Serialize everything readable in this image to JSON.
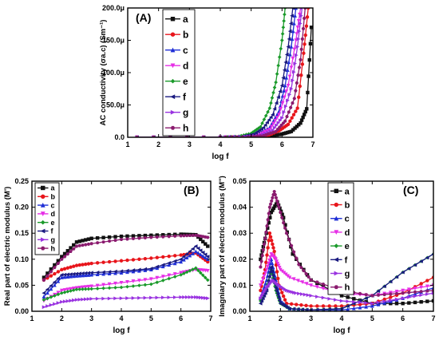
{
  "chart_data": [
    {
      "panel": "(A)",
      "type": "line",
      "ylabel": "AC conductivity (σa.c) (Sm⁻¹)",
      "xlabel": "log f",
      "xlim": [
        1,
        7
      ],
      "ylim": [
        0,
        0.0002
      ],
      "x_ticks": [
        "1",
        "2",
        "3",
        "4",
        "5",
        "6",
        "7"
      ],
      "y_ticks": [
        "0.0",
        "50.0μ",
        "100.0μ",
        "150.0μ",
        "200.0μ"
      ],
      "legend_position": "top-left",
      "series": [
        {
          "name": "a",
          "color": "#111111",
          "marker": "square",
          "x": [
            1.3,
            4.0,
            5.0,
            5.6,
            6.0,
            6.3,
            6.6,
            6.8,
            6.95
          ],
          "y": [
            0,
            0,
            0,
            1.5e-06,
            5e-06,
            9e-06,
            2.2e-05,
            4.4e-05,
            0.00017
          ]
        },
        {
          "name": "b",
          "color": "#e8151b",
          "marker": "circle",
          "x": [
            1.3,
            4.0,
            5.0,
            5.5,
            5.9,
            6.2,
            6.5,
            6.7,
            6.85
          ],
          "y": [
            0,
            0,
            5e-07,
            2e-06,
            1e-05,
            2e-05,
            4.5e-05,
            0.00013,
            0.0002
          ]
        },
        {
          "name": "c",
          "color": "#1f2fd6",
          "marker": "triangle-up",
          "x": [
            1.3,
            4.0,
            4.8,
            5.2,
            5.6,
            5.9,
            6.1,
            6.3,
            6.45
          ],
          "y": [
            0,
            0,
            1e-06,
            4e-06,
            1.5e-05,
            4e-05,
            8e-05,
            0.00014,
            0.0002
          ]
        },
        {
          "name": "d",
          "color": "#e62ee6",
          "marker": "triangle-down",
          "x": [
            1.3,
            4.0,
            4.8,
            5.2,
            5.6,
            5.9,
            6.2,
            6.45,
            6.6
          ],
          "y": [
            0,
            0,
            1e-06,
            3e-06,
            1.2e-05,
            3.5e-05,
            8e-05,
            0.00015,
            0.0002
          ]
        },
        {
          "name": "e",
          "color": "#1a9a2a",
          "marker": "diamond",
          "x": [
            1.3,
            4.0,
            4.6,
            5.0,
            5.3,
            5.6,
            5.8,
            6.0,
            6.1
          ],
          "y": [
            0,
            0,
            1.5e-06,
            6e-06,
            1.6e-05,
            4.5e-05,
            8.5e-05,
            0.00015,
            0.0002
          ]
        },
        {
          "name": "f",
          "color": "#1a1a80",
          "marker": "triangle-left",
          "x": [
            1.3,
            4.0,
            4.7,
            5.1,
            5.4,
            5.7,
            6.0,
            6.2,
            6.35
          ],
          "y": [
            0,
            0,
            1e-06,
            5e-06,
            1.5e-05,
            3.5e-05,
            8e-05,
            0.00014,
            0.0002
          ]
        },
        {
          "name": "g",
          "color": "#9932e0",
          "marker": "triangle-right",
          "x": [
            1.3,
            4.0,
            4.8,
            5.3,
            5.7,
            6.0,
            6.3,
            6.5,
            6.65
          ],
          "y": [
            0,
            0,
            1e-06,
            3e-06,
            1.1e-05,
            3e-05,
            7.5e-05,
            0.00014,
            0.0002
          ]
        },
        {
          "name": "h",
          "color": "#8a1a6e",
          "marker": "hexagon",
          "x": [
            1.3,
            4.0,
            4.9,
            5.4,
            5.8,
            6.1,
            6.4,
            6.6,
            6.75
          ],
          "y": [
            0,
            0,
            5e-07,
            2.5e-06,
            9e-06,
            2.5e-05,
            6e-05,
            0.00012,
            0.0002
          ]
        }
      ]
    },
    {
      "panel": "(B)",
      "type": "line",
      "ylabel": "Real part of electric modulus (M')",
      "xlabel": "log f",
      "xlim": [
        1,
        7
      ],
      "ylim": [
        0,
        0.25
      ],
      "x_ticks": [
        "1",
        "2",
        "3",
        "4",
        "5",
        "6",
        "7"
      ],
      "y_ticks": [
        "0.00",
        "0.05",
        "0.10",
        "0.15",
        "0.20",
        "0.25"
      ],
      "legend_position": "top-left",
      "series": [
        {
          "name": "a",
          "color": "#111111",
          "marker": "square",
          "x": [
            1.4,
            2.0,
            2.5,
            3.0,
            4.0,
            5.0,
            6.0,
            6.5,
            6.9
          ],
          "y": [
            0.065,
            0.105,
            0.133,
            0.14,
            0.144,
            0.146,
            0.148,
            0.147,
            0.125
          ]
        },
        {
          "name": "b",
          "color": "#e8151b",
          "marker": "circle",
          "x": [
            1.4,
            2.0,
            2.5,
            3.0,
            4.0,
            5.0,
            6.0,
            6.5,
            6.9
          ],
          "y": [
            0.06,
            0.08,
            0.088,
            0.092,
            0.097,
            0.102,
            0.108,
            0.112,
            0.095
          ]
        },
        {
          "name": "c",
          "color": "#1f2fd6",
          "marker": "triangle-up",
          "x": [
            1.4,
            2.0,
            2.5,
            3.0,
            4.0,
            5.0,
            6.0,
            6.5,
            6.9
          ],
          "y": [
            0.028,
            0.065,
            0.068,
            0.07,
            0.074,
            0.08,
            0.095,
            0.115,
            0.1
          ]
        },
        {
          "name": "d",
          "color": "#e62ee6",
          "marker": "triangle-down",
          "x": [
            1.4,
            2.0,
            2.5,
            3.0,
            4.0,
            5.0,
            6.0,
            6.5,
            6.9
          ],
          "y": [
            0.02,
            0.04,
            0.045,
            0.048,
            0.055,
            0.062,
            0.074,
            0.08,
            0.078
          ]
        },
        {
          "name": "e",
          "color": "#1a9a2a",
          "marker": "diamond",
          "x": [
            1.4,
            2.0,
            2.5,
            3.0,
            4.0,
            5.0,
            6.0,
            6.5,
            6.9
          ],
          "y": [
            0.022,
            0.035,
            0.042,
            0.043,
            0.046,
            0.052,
            0.07,
            0.083,
            0.06
          ]
        },
        {
          "name": "f",
          "color": "#1a1a80",
          "marker": "triangle-left",
          "x": [
            1.4,
            2.0,
            2.5,
            3.0,
            4.0,
            5.0,
            6.0,
            6.5,
            6.9
          ],
          "y": [
            0.035,
            0.07,
            0.072,
            0.074,
            0.077,
            0.082,
            0.1,
            0.125,
            0.105
          ]
        },
        {
          "name": "g",
          "color": "#9932e0",
          "marker": "triangle-right",
          "x": [
            1.4,
            2.0,
            2.5,
            3.0,
            4.0,
            5.0,
            6.0,
            6.5,
            6.9
          ],
          "y": [
            0.008,
            0.018,
            0.022,
            0.024,
            0.025,
            0.026,
            0.027,
            0.027,
            0.025
          ]
        },
        {
          "name": "h",
          "color": "#8a1a6e",
          "marker": "hexagon",
          "x": [
            1.4,
            2.0,
            2.5,
            3.0,
            4.0,
            5.0,
            6.0,
            6.5,
            6.9
          ],
          "y": [
            0.06,
            0.1,
            0.125,
            0.13,
            0.138,
            0.142,
            0.145,
            0.146,
            0.142
          ]
        }
      ]
    },
    {
      "panel": "(C)",
      "type": "line",
      "ylabel": "Imagniary part of electric modulus (M'')",
      "xlabel": "log f",
      "xlim": [
        1,
        7
      ],
      "ylim": [
        0,
        0.05
      ],
      "x_ticks": [
        "1",
        "2",
        "3",
        "4",
        "5",
        "6",
        "7"
      ],
      "y_ticks": [
        "0.00",
        "0.01",
        "0.02",
        "0.03",
        "0.04",
        "0.05"
      ],
      "legend_position": "top-center",
      "series": [
        {
          "name": "a",
          "color": "#111111",
          "marker": "square",
          "x": [
            1.35,
            1.5,
            1.7,
            1.9,
            2.1,
            2.4,
            3.0,
            4.0,
            5.0,
            6.0,
            7.0
          ],
          "y": [
            0.02,
            0.028,
            0.038,
            0.042,
            0.036,
            0.022,
            0.012,
            0.006,
            0.003,
            0.003,
            0.004
          ]
        },
        {
          "name": "b",
          "color": "#e8151b",
          "marker": "circle",
          "x": [
            1.35,
            1.5,
            1.65,
            1.8,
            1.95,
            2.2,
            3.0,
            4.0,
            5.0,
            6.0,
            7.0
          ],
          "y": [
            0.008,
            0.016,
            0.03,
            0.023,
            0.01,
            0.003,
            0.002,
            0.002,
            0.003,
            0.007,
            0.013
          ]
        },
        {
          "name": "c",
          "color": "#1f2fd6",
          "marker": "triangle-up",
          "x": [
            1.35,
            1.55,
            1.7,
            1.85,
            2.0,
            2.3,
            3.0,
            4.0,
            5.0,
            6.0,
            7.0
          ],
          "y": [
            0.005,
            0.012,
            0.02,
            0.012,
            0.004,
            0.001,
            0.0005,
            0.0005,
            0.002,
            0.005,
            0.009
          ]
        },
        {
          "name": "d",
          "color": "#e62ee6",
          "marker": "triangle-down",
          "x": [
            1.35,
            1.55,
            1.7,
            1.85,
            2.0,
            2.3,
            3.0,
            4.0,
            5.0,
            6.0,
            7.0
          ],
          "y": [
            0.01,
            0.016,
            0.022,
            0.02,
            0.016,
            0.013,
            0.01,
            0.007,
            0.006,
            0.008,
            0.01
          ]
        },
        {
          "name": "e",
          "color": "#1a9a2a",
          "marker": "diamond",
          "x": [
            1.35,
            1.55,
            1.7,
            1.85,
            2.0,
            2.3,
            3.0,
            4.0,
            5.0,
            6.0,
            7.0
          ],
          "y": [
            0.004,
            0.009,
            0.016,
            0.008,
            0.003,
            0.001,
            0.0005,
            0.001,
            0.006,
            0.015,
            0.022
          ]
        },
        {
          "name": "f",
          "color": "#1a1a80",
          "marker": "triangle-left",
          "x": [
            1.35,
            1.55,
            1.7,
            1.85,
            2.0,
            2.3,
            3.0,
            4.0,
            5.0,
            6.0,
            7.0
          ],
          "y": [
            0.003,
            0.008,
            0.017,
            0.009,
            0.003,
            0.001,
            0.0005,
            0.001,
            0.006,
            0.015,
            0.022
          ]
        },
        {
          "name": "g",
          "color": "#9932e0",
          "marker": "triangle-right",
          "x": [
            1.35,
            1.55,
            1.75,
            1.95,
            2.2,
            2.5,
            3.0,
            4.0,
            5.0,
            6.0,
            7.0
          ],
          "y": [
            0.005,
            0.009,
            0.012,
            0.01,
            0.008,
            0.007,
            0.006,
            0.004,
            0.003,
            0.005,
            0.007
          ]
        },
        {
          "name": "h",
          "color": "#8a1a6e",
          "marker": "hexagon",
          "x": [
            1.35,
            1.5,
            1.65,
            1.8,
            1.95,
            2.2,
            2.6,
            3.0,
            4.0,
            5.0,
            6.0,
            7.0
          ],
          "y": [
            0.017,
            0.028,
            0.04,
            0.046,
            0.04,
            0.03,
            0.018,
            0.012,
            0.008,
            0.006,
            0.007,
            0.008
          ]
        }
      ]
    }
  ]
}
